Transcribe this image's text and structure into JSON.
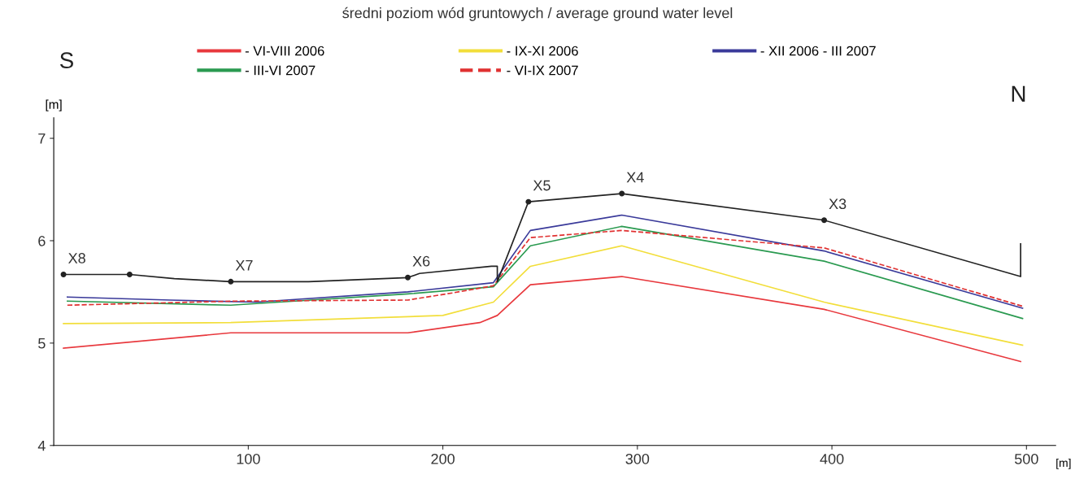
{
  "chart_data": {
    "type": "line",
    "title": "średni poziom wód gruntowych / average ground water level",
    "ylabel": "[m]",
    "xlabel": "[m]",
    "xlim": [
      0,
      515
    ],
    "xticks": [
      100,
      200,
      300,
      400,
      500
    ],
    "ylim": [
      4,
      7.2
    ],
    "yticks": [
      4,
      5,
      6,
      7
    ],
    "grid": false,
    "legend": "top",
    "series": [
      {
        "name": "- VI-VIII 2006",
        "color": "#e8383d",
        "line_style": "solid",
        "x": [
          5,
          91,
          182,
          219,
          228,
          245,
          292,
          396,
          497
        ],
        "values": [
          4.95,
          5.1,
          5.1,
          5.2,
          5.27,
          5.57,
          5.65,
          5.33,
          4.82
        ]
      },
      {
        "name": "- IX-XI 2006",
        "color": "#f2de3a",
        "line_style": "solid",
        "x": [
          5,
          91,
          200,
          226,
          245,
          292,
          396,
          498
        ],
        "values": [
          5.19,
          5.2,
          5.27,
          5.4,
          5.75,
          5.95,
          5.4,
          4.98
        ]
      },
      {
        "name": "- XII 2006 - III 2007",
        "color": "#3a3a9a",
        "line_style": "solid",
        "x": [
          7,
          60,
          104,
          182,
          226,
          245,
          292,
          396,
          498
        ],
        "values": [
          5.45,
          5.42,
          5.4,
          5.5,
          5.59,
          6.1,
          6.25,
          5.9,
          5.34
        ]
      },
      {
        "name": "- III-VI 2007",
        "color": "#2a9a50",
        "line_style": "solid",
        "x": [
          7,
          91,
          182,
          226,
          245,
          292,
          396,
          498
        ],
        "values": [
          5.41,
          5.37,
          5.48,
          5.55,
          5.95,
          6.14,
          5.8,
          5.24
        ]
      },
      {
        "name": "- VI-IX 2007",
        "color": "#e03030",
        "line_style": "dashed",
        "x": [
          7,
          93,
          182,
          205,
          226,
          245,
          292,
          396,
          498
        ],
        "values": [
          5.37,
          5.41,
          5.42,
          5.49,
          5.56,
          6.03,
          6.1,
          5.93,
          5.36
        ]
      },
      {
        "color": "#222222",
        "line_style": "solid",
        "marker": "none",
        "x": [
          5,
          39,
          62,
          91,
          131,
          182,
          188,
          225,
          228,
          228,
          244,
          292,
          396,
          497,
          497
        ],
        "values": [
          5.67,
          5.67,
          5.63,
          5.6,
          5.6,
          5.64,
          5.68,
          5.75,
          5.75,
          5.6,
          6.38,
          6.46,
          6.2,
          5.65,
          5.97
        ]
      },
      {
        "type": "scatter",
        "color": "#222222",
        "marker": "circle",
        "x": [
          5,
          39,
          91,
          182,
          244,
          292,
          396
        ],
        "values": [
          5.67,
          5.67,
          5.6,
          5.64,
          6.38,
          6.46,
          6.2
        ]
      }
    ],
    "annotations": [
      "S",
      "N",
      {
        "text": "X8",
        "x": 5,
        "y": 5.67
      },
      {
        "text": "X7",
        "x": 91,
        "y": 5.6
      },
      {
        "text": "X6",
        "x": 182,
        "y": 5.64
      },
      {
        "text": "X5",
        "x": 244,
        "y": 6.38
      },
      {
        "text": "X4",
        "x": 292,
        "y": 6.46
      },
      {
        "text": "X3",
        "x": 396,
        "y": 6.2
      }
    ]
  }
}
